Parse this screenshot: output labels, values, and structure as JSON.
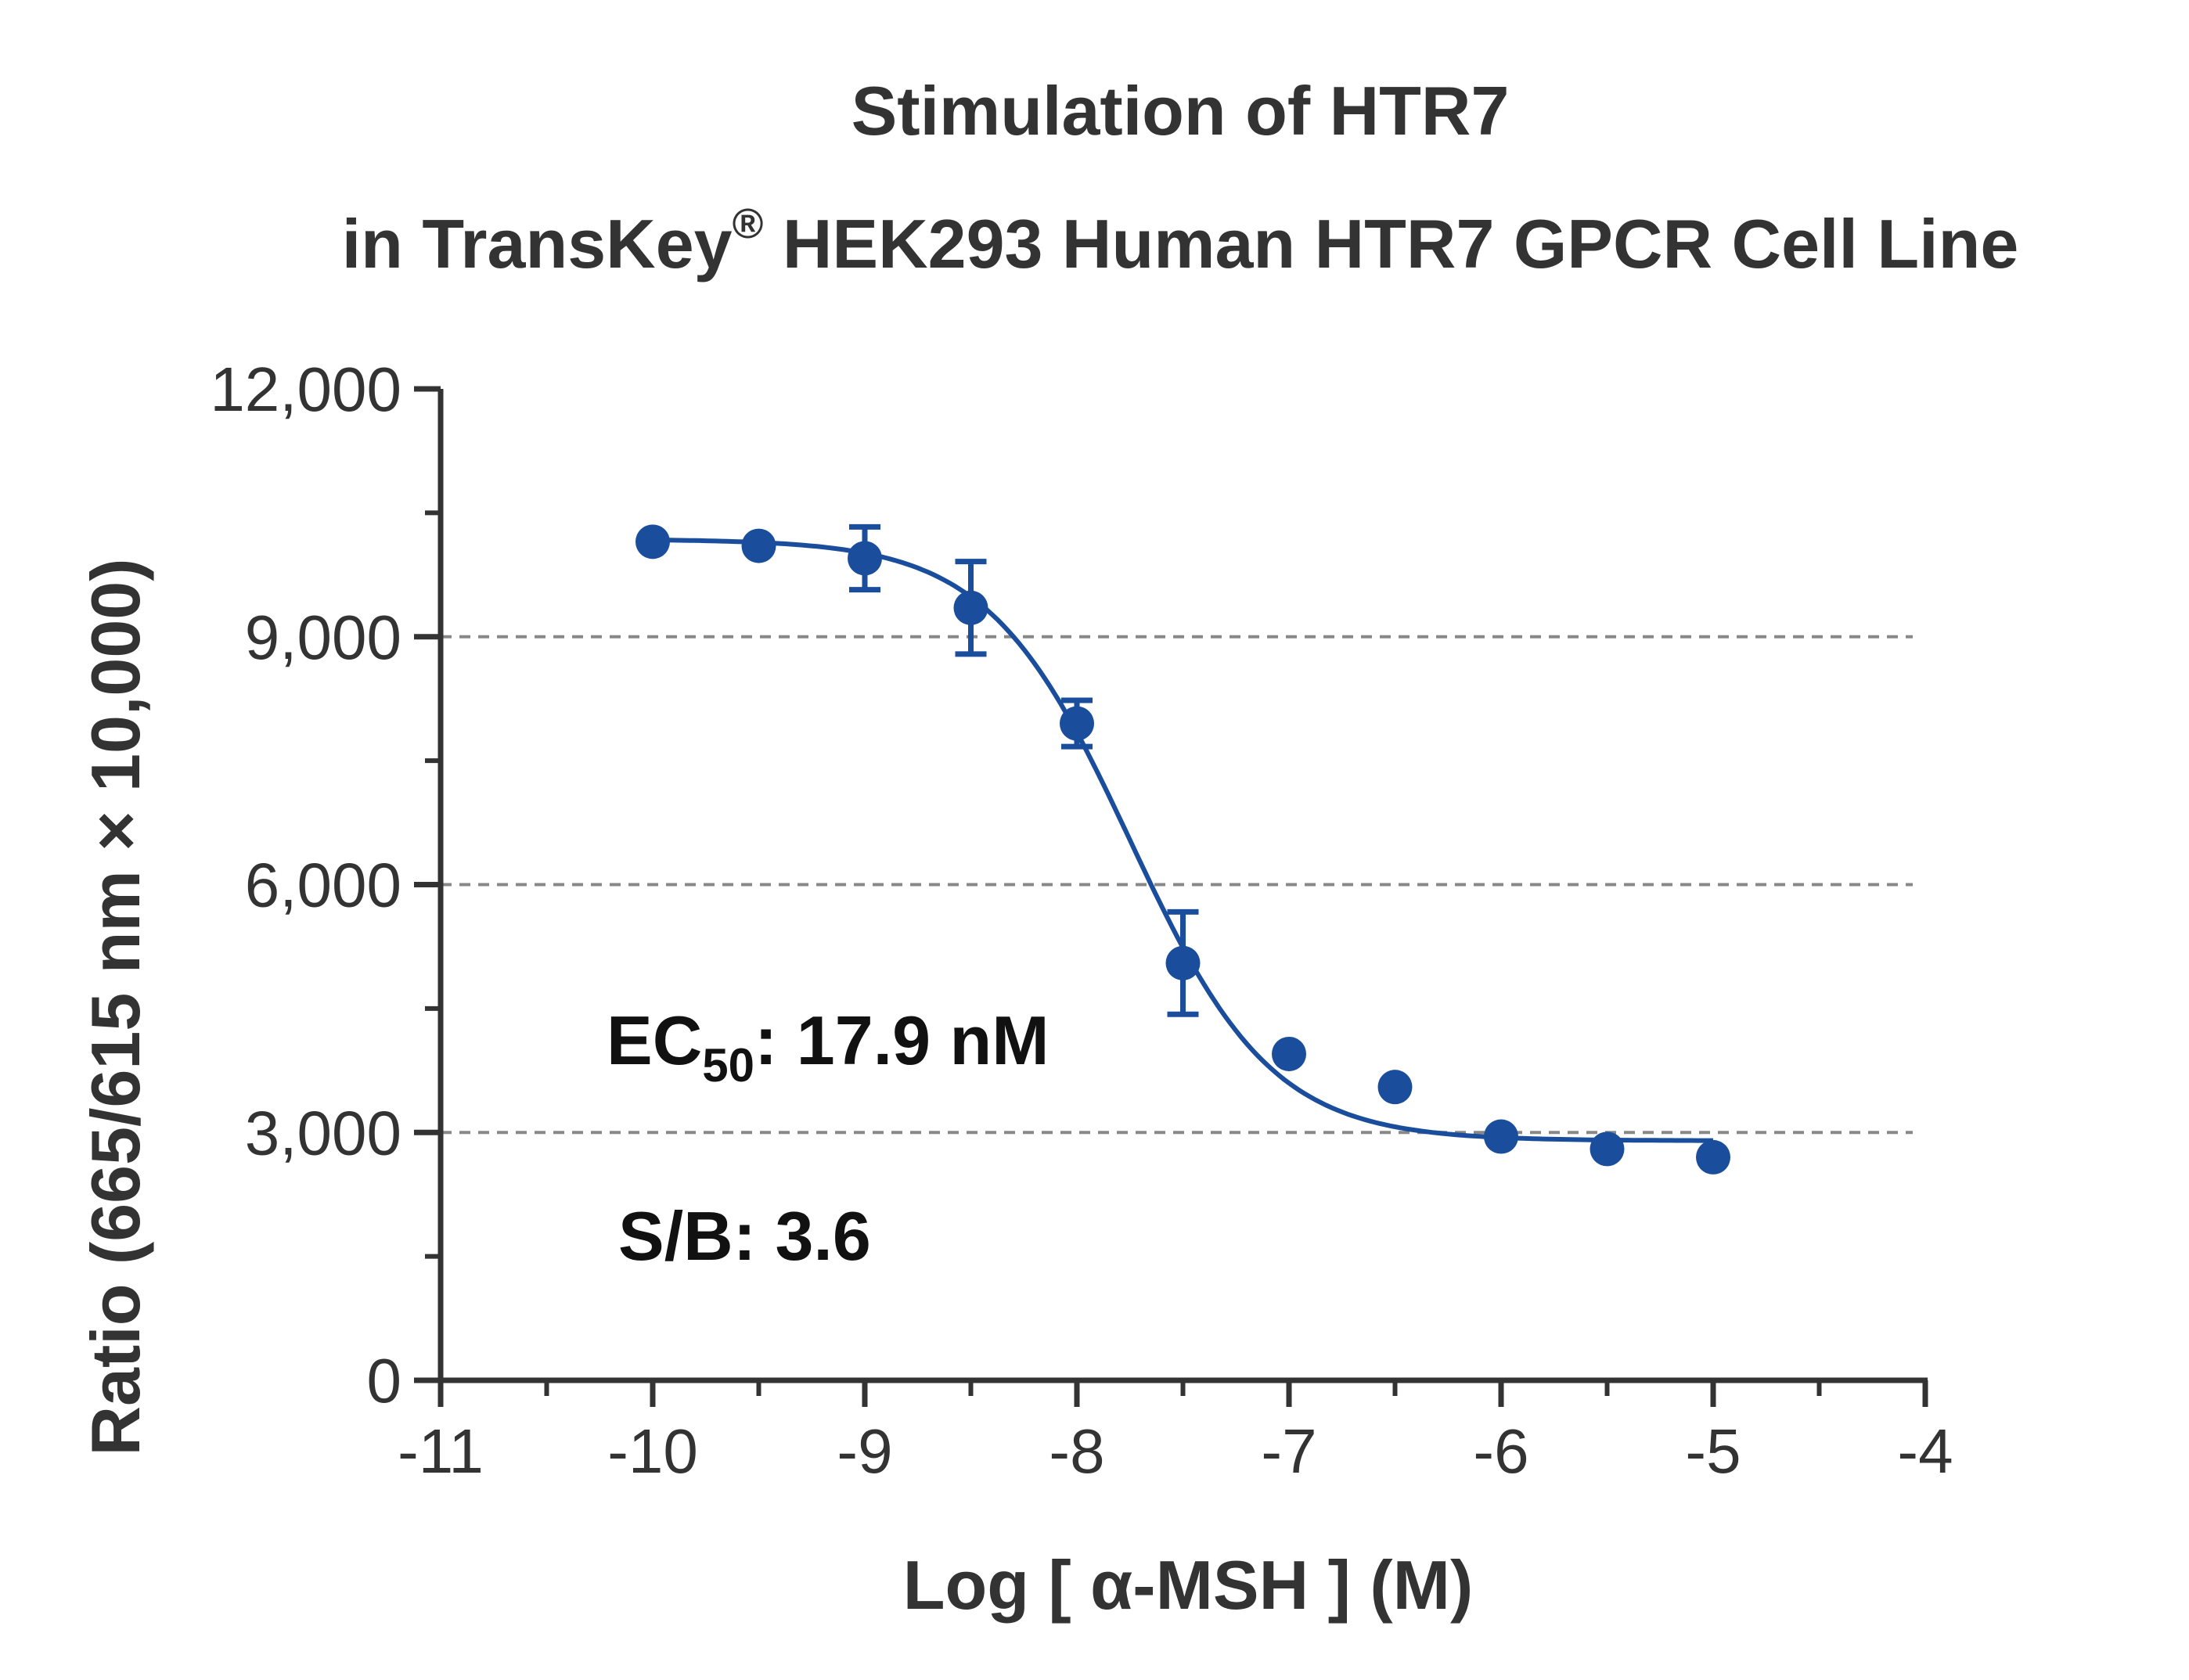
{
  "chart_data": {
    "type": "scatter",
    "title_line1": "Stimulation of  HTR7",
    "title_line2_pre": "in TransKey",
    "title_line2_reg": "®",
    "title_line2_post": " HEK293 Human HTR7 GPCR Cell Line",
    "xlabel": "Log [ α-MSH ]  (M)",
    "ylabel": "Ratio (665/615 nm × 10,000)",
    "xlim": [
      -11,
      -4
    ],
    "ylim": [
      0,
      12000
    ],
    "x_ticks": [
      -11,
      -10,
      -9,
      -8,
      -7,
      -6,
      -5,
      -4
    ],
    "x_tick_labels": [
      "-11",
      "-10",
      "-9",
      "-8",
      "-7",
      "-6",
      "-5",
      "-4"
    ],
    "y_ticks": [
      0,
      3000,
      6000,
      9000,
      12000
    ],
    "y_tick_labels": [
      "0",
      "3,000",
      "6,000",
      "9,000",
      "12,000"
    ],
    "y_minor_ticks": [
      1500,
      4500,
      7500,
      10500
    ],
    "x_minor_ticks": [
      -10.5,
      -9.5,
      -8.5,
      -7.5,
      -6.5,
      -5.5,
      -4.5
    ],
    "gridlines_y": [
      3000,
      6000,
      9000
    ],
    "series": [
      {
        "x": [
          -10,
          -9.5,
          -9,
          -8.5,
          -8,
          -7.5,
          -7,
          -6.5,
          -6,
          -5.5,
          -5
        ],
        "y": [
          10150,
          10100,
          9950,
          9350,
          7950,
          5050,
          3950,
          3550,
          2950,
          2800,
          2700
        ],
        "error": [
          0,
          0,
          380,
          560,
          280,
          620,
          0,
          0,
          0,
          0,
          0
        ],
        "color": "#1a4e9c"
      }
    ],
    "fit_curve": {
      "model": "4PL",
      "top": 10180,
      "bottom": 2900,
      "log_ec50": -7.75,
      "hill": -1.3,
      "x_range": [
        -10,
        -5
      ]
    },
    "annotations": {
      "ec50_prefix": "EC",
      "ec50_sub": "50",
      "ec50_suffix": ": 17.9 nM",
      "sb": "S/B: 3.6"
    },
    "colors": {
      "series": "#1a4e9c",
      "axis": "#333333",
      "grid": "#888888"
    }
  }
}
